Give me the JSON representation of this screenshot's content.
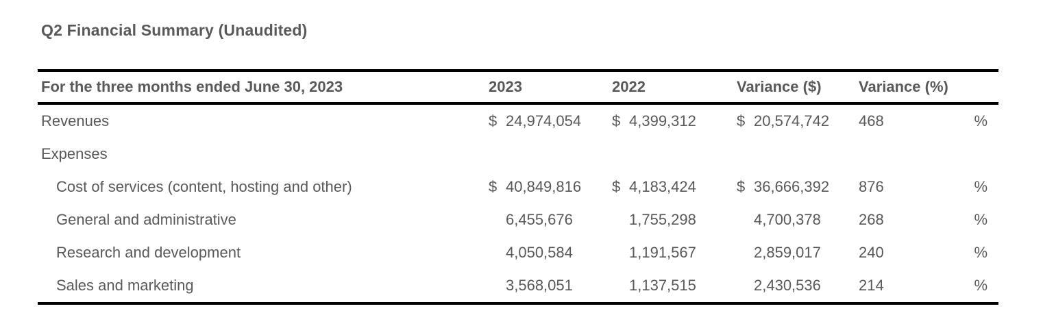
{
  "title": "Q2 Financial Summary (Unaudited)",
  "colors": {
    "text": "#595959",
    "rule": "#000000",
    "background": "#ffffff"
  },
  "table": {
    "header": {
      "label": "For the three months ended June 30, 2023",
      "col_2023": "2023",
      "col_2022": "2022",
      "col_variance_dollar": "Variance ($)",
      "col_variance_percent": "Variance (%)"
    },
    "rows": [
      {
        "label": "Revenues",
        "indent": false,
        "y2023": {
          "currency": "$",
          "value": "24,974,054"
        },
        "y2022": {
          "currency": "$",
          "value": "4,399,312"
        },
        "variance_dollar": {
          "currency": "$",
          "value": "20,574,742"
        },
        "variance_percent": {
          "value": "468",
          "unit": "%"
        }
      },
      {
        "label": "Expenses",
        "indent": false,
        "y2023": null,
        "y2022": null,
        "variance_dollar": null,
        "variance_percent": null
      },
      {
        "label": "Cost of services (content, hosting and other)",
        "indent": true,
        "y2023": {
          "currency": "$",
          "value": "40,849,816"
        },
        "y2022": {
          "currency": "$",
          "value": "4,183,424"
        },
        "variance_dollar": {
          "currency": "$",
          "value": "36,666,392"
        },
        "variance_percent": {
          "value": "876",
          "unit": "%"
        }
      },
      {
        "label": "General and administrative",
        "indent": true,
        "y2023": {
          "currency": "",
          "value": "6,455,676"
        },
        "y2022": {
          "currency": "",
          "value": "1,755,298"
        },
        "variance_dollar": {
          "currency": "",
          "value": "4,700,378"
        },
        "variance_percent": {
          "value": "268",
          "unit": "%"
        }
      },
      {
        "label": "Research and development",
        "indent": true,
        "y2023": {
          "currency": "",
          "value": "4,050,584"
        },
        "y2022": {
          "currency": "",
          "value": "1,191,567"
        },
        "variance_dollar": {
          "currency": "",
          "value": "2,859,017"
        },
        "variance_percent": {
          "value": "240",
          "unit": "%"
        }
      },
      {
        "label": "Sales and marketing",
        "indent": true,
        "y2023": {
          "currency": "",
          "value": "3,568,051"
        },
        "y2022": {
          "currency": "",
          "value": "1,137,515"
        },
        "variance_dollar": {
          "currency": "",
          "value": "2,430,536"
        },
        "variance_percent": {
          "value": "214",
          "unit": "%"
        }
      }
    ]
  }
}
